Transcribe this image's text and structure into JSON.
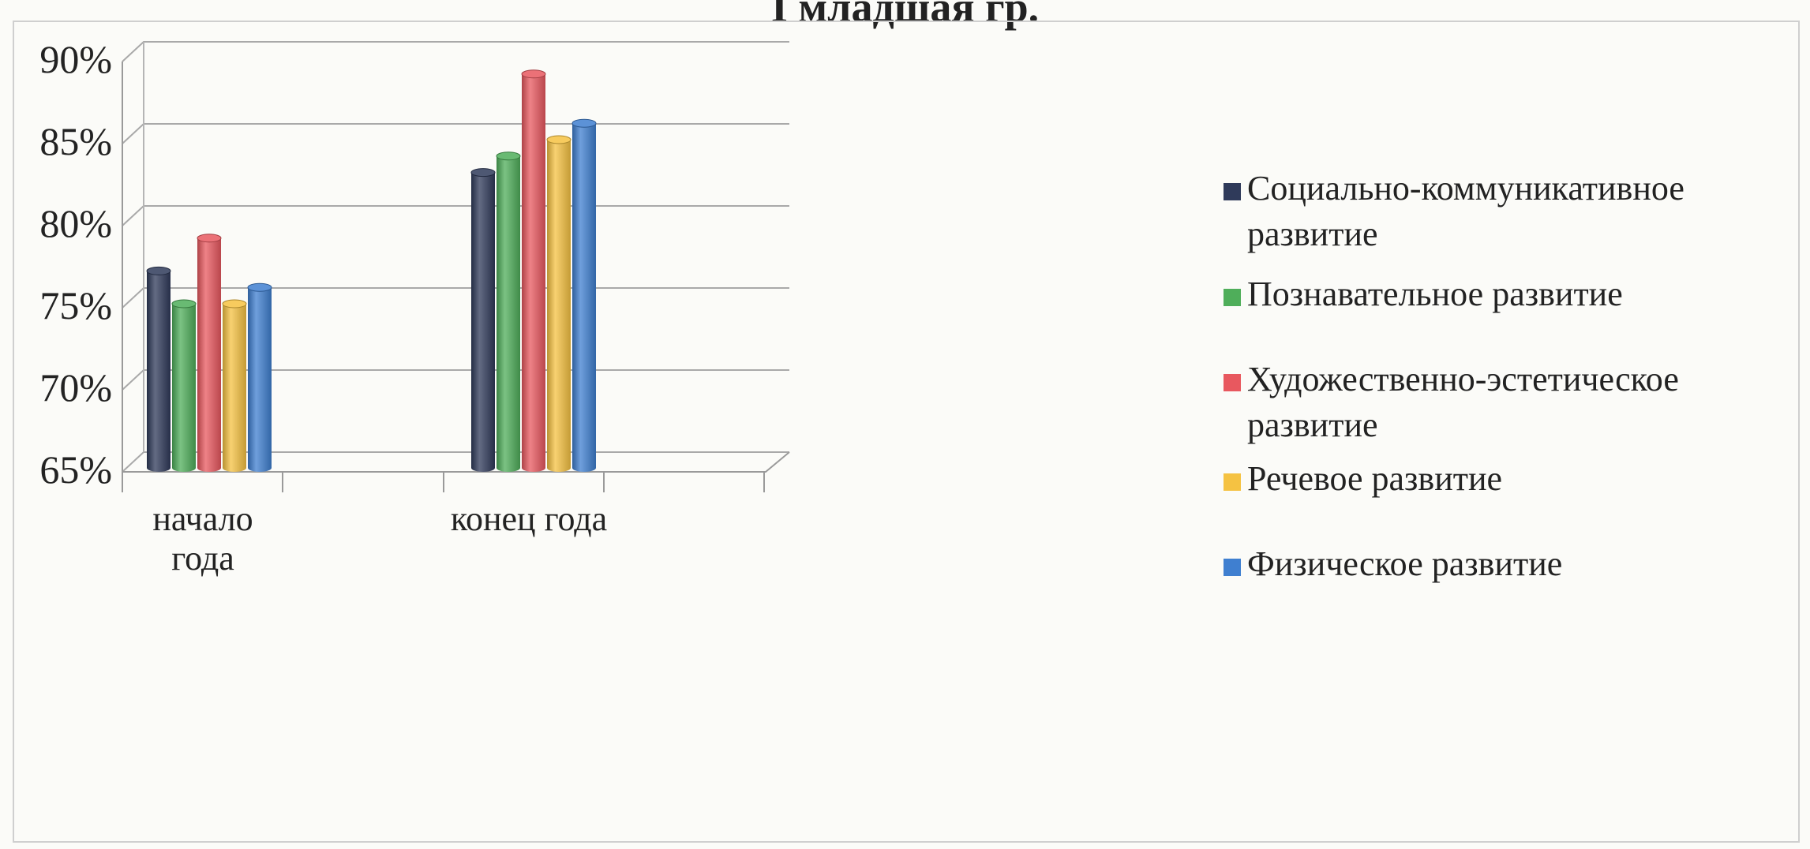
{
  "chart_data": {
    "type": "bar",
    "title": "I младшая гр.",
    "categories": [
      "начало года",
      "конец года"
    ],
    "category_label_lines": [
      [
        "начало",
        "года"
      ],
      [
        "конец года"
      ]
    ],
    "series": [
      {
        "name": "Социально-коммуникативное развитие",
        "name_lines": [
          "Социально-коммуникативное",
          "развитие"
        ],
        "color": "#2f3a5a",
        "values": [
          77,
          83
        ]
      },
      {
        "name": "Познавательное развитие",
        "name_lines": [
          "Познавательное развитие"
        ],
        "color": "#4fae5a",
        "values": [
          75,
          84
        ]
      },
      {
        "name": "Художественно-эстетическое развитие",
        "name_lines": [
          "Художественно-эстетическое",
          "развитие"
        ],
        "color": "#e8585f",
        "values": [
          79,
          89
        ]
      },
      {
        "name": "Речевое развитие",
        "name_lines": [
          "Речевое развитие"
        ],
        "color": "#f5c242",
        "values": [
          75,
          85
        ]
      },
      {
        "name": "Физическое развитие",
        "name_lines": [
          "Физическое развитие"
        ],
        "color": "#3f7fd0",
        "values": [
          76,
          86
        ]
      }
    ],
    "ylim": [
      65,
      90
    ],
    "yticks": [
      65,
      70,
      75,
      80,
      85,
      90
    ],
    "ytick_labels": [
      "65%",
      "70%",
      "75%",
      "80%",
      "85%",
      "90%"
    ],
    "grid": true,
    "legend_position": "right",
    "xlabel": "",
    "ylabel": ""
  }
}
